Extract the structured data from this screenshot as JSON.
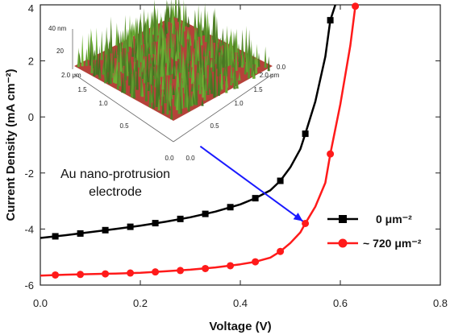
{
  "chart_data": {
    "type": "line",
    "title": "",
    "xlabel": "Voltage (V)",
    "ylabel": "Current Density (mA cm⁻²)",
    "xlim": [
      0.0,
      0.8
    ],
    "ylim": [
      -6,
      4
    ],
    "xticks": [
      "0.0",
      "0.2",
      "0.4",
      "0.6",
      "0.8"
    ],
    "yticks": [
      "-6",
      "-4",
      "-2",
      "0",
      "2",
      "4"
    ],
    "grid": false,
    "legend_position": "bottom-right",
    "series": [
      {
        "name": "0 μm⁻²",
        "color": "#000000",
        "marker": "square",
        "x": [
          0.03,
          0.08,
          0.13,
          0.18,
          0.23,
          0.28,
          0.33,
          0.38,
          0.43,
          0.48,
          0.53,
          0.58
        ],
        "y": [
          -4.26,
          -4.16,
          -4.04,
          -3.92,
          -3.79,
          -3.64,
          -3.46,
          -3.22,
          -2.9,
          -2.28,
          -0.6,
          3.45
        ],
        "curve": [
          [
            0.0,
            -4.32
          ],
          [
            0.05,
            -4.22
          ],
          [
            0.1,
            -4.11
          ],
          [
            0.15,
            -4.0
          ],
          [
            0.2,
            -3.88
          ],
          [
            0.25,
            -3.74
          ],
          [
            0.3,
            -3.58
          ],
          [
            0.35,
            -3.38
          ],
          [
            0.4,
            -3.12
          ],
          [
            0.43,
            -2.9
          ],
          [
            0.46,
            -2.62
          ],
          [
            0.48,
            -2.28
          ],
          [
            0.5,
            -1.8
          ],
          [
            0.52,
            -1.15
          ],
          [
            0.53,
            -0.6
          ],
          [
            0.55,
            0.55
          ],
          [
            0.57,
            2.15
          ],
          [
            0.58,
            3.45
          ],
          [
            0.59,
            4.0
          ]
        ]
      },
      {
        "name": "~ 720 μm⁻²",
        "color": "#ff1a1a",
        "marker": "circle",
        "x": [
          0.03,
          0.08,
          0.13,
          0.18,
          0.23,
          0.28,
          0.33,
          0.38,
          0.43,
          0.48,
          0.53,
          0.58,
          0.63
        ],
        "y": [
          -5.64,
          -5.62,
          -5.6,
          -5.57,
          -5.53,
          -5.48,
          -5.41,
          -5.31,
          -5.17,
          -4.8,
          -3.8,
          -1.32,
          3.95
        ],
        "curve": [
          [
            0.0,
            -5.66
          ],
          [
            0.05,
            -5.63
          ],
          [
            0.1,
            -5.61
          ],
          [
            0.15,
            -5.59
          ],
          [
            0.2,
            -5.56
          ],
          [
            0.25,
            -5.51
          ],
          [
            0.3,
            -5.45
          ],
          [
            0.35,
            -5.37
          ],
          [
            0.4,
            -5.26
          ],
          [
            0.43,
            -5.17
          ],
          [
            0.46,
            -5.02
          ],
          [
            0.48,
            -4.8
          ],
          [
            0.5,
            -4.5
          ],
          [
            0.52,
            -4.12
          ],
          [
            0.53,
            -3.8
          ],
          [
            0.55,
            -3.2
          ],
          [
            0.57,
            -2.35
          ],
          [
            0.58,
            -1.32
          ],
          [
            0.6,
            0.45
          ],
          [
            0.62,
            2.55
          ],
          [
            0.63,
            3.95
          ],
          [
            0.632,
            4.0
          ]
        ]
      }
    ],
    "annotations": {
      "label_line1": "Au nano-protrusion",
      "label_line2": "electrode",
      "arrow_color": "#1a1aff",
      "arrow_from": [
        0.32,
        -1.05
      ],
      "arrow_to": [
        0.525,
        -3.72
      ]
    },
    "inset": {
      "description_tick_labels": {
        "z_axis": [
          "40 nm",
          "20"
        ],
        "left_axis": [
          "2.0 μm",
          "1.5",
          "1.0",
          "0.5",
          "0.0"
        ],
        "right_axis": [
          "0.0",
          "0.5",
          "1.0",
          "1.5",
          "2.0 μm"
        ],
        "back_axis": [
          "0.0"
        ]
      },
      "surface_color": "#6b8f3a",
      "floor_color": "#b5423a"
    }
  }
}
